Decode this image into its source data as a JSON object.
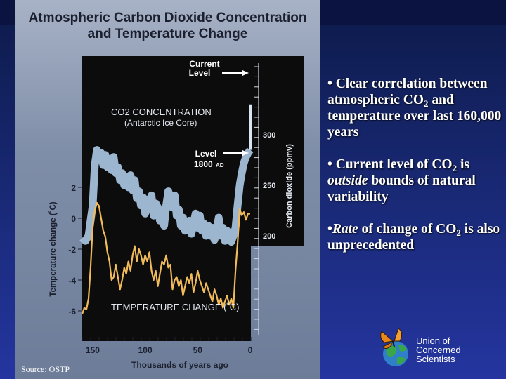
{
  "slide": {
    "source": "Source: OSTP",
    "bullets": [
      {
        "marker": "•",
        "parts": [
          "Clear correlation between atmospheric CO",
          "2",
          " and temperature over last 160,000 years"
        ]
      },
      {
        "marker": "•",
        "parts": [
          "Current level of CO",
          "2",
          " is ",
          "outside",
          " bounds of natural variability"
        ]
      },
      {
        "marker": "•",
        "parts": [
          "Rate",
          " of change of CO",
          "2",
          " is also unprecedented"
        ]
      }
    ],
    "logo": {
      "line1": "Union of",
      "line2": "Concerned",
      "line3": "Scientists",
      "icon": "butterfly-globe-icon"
    },
    "colors": {
      "co2": "#a9c6e2",
      "temperature": "#f2bb5a",
      "plot_background": "#0c0c0c",
      "slide_background": "#1a2a78"
    }
  },
  "chart_data": {
    "type": "line",
    "title": "Atmospheric Carbon Dioxide Concentration and Temperature Change",
    "xlabel": "Thousands of years ago",
    "x_ticks": [
      150,
      100,
      50,
      0
    ],
    "xlim": [
      160,
      0
    ],
    "y_left": {
      "label": "Temperature change (˚C)",
      "ticks": [
        "2",
        "0",
        "-2",
        "-4",
        "-6"
      ],
      "lim": [
        -6.8,
        2.8
      ]
    },
    "y_right": {
      "label": "Carbon dioxide (ppmv)",
      "ticks": [
        "300",
        "250",
        "200"
      ],
      "lim": [
        180,
        310
      ]
    },
    "series": [
      {
        "name": "CO2 CONCENTRATION",
        "subtitle": "(Antarctic Ice Core)",
        "axis": "right",
        "points": [
          [
            160,
            198
          ],
          [
            157,
            195
          ],
          [
            154,
            200
          ],
          [
            152,
            215
          ],
          [
            150,
            230
          ],
          [
            148,
            270
          ],
          [
            146,
            285
          ],
          [
            144,
            275
          ],
          [
            142,
            282
          ],
          [
            140,
            270
          ],
          [
            138,
            280
          ],
          [
            136,
            268
          ],
          [
            134,
            276
          ],
          [
            132,
            265
          ],
          [
            130,
            278
          ],
          [
            128,
            262
          ],
          [
            126,
            268
          ],
          [
            124,
            255
          ],
          [
            122,
            262
          ],
          [
            120,
            250
          ],
          [
            118,
            258
          ],
          [
            116,
            248
          ],
          [
            114,
            260
          ],
          [
            112,
            245
          ],
          [
            110,
            255
          ],
          [
            108,
            237
          ],
          [
            106,
            244
          ],
          [
            104,
            230
          ],
          [
            102,
            238
          ],
          [
            100,
            222
          ],
          [
            98,
            236
          ],
          [
            96,
            226
          ],
          [
            94,
            240
          ],
          [
            92,
            220
          ],
          [
            90,
            232
          ],
          [
            88,
            228
          ],
          [
            86,
            215
          ],
          [
            84,
            225
          ],
          [
            82,
            210
          ],
          [
            80,
            230
          ],
          [
            78,
            244
          ],
          [
            76,
            238
          ],
          [
            74,
            228
          ],
          [
            72,
            240
          ],
          [
            70,
            220
          ],
          [
            68,
            226
          ],
          [
            66,
            210
          ],
          [
            64,
            218
          ],
          [
            62,
            205
          ],
          [
            60,
            212
          ],
          [
            58,
            215
          ],
          [
            56,
            202
          ],
          [
            54,
            212
          ],
          [
            52,
            222
          ],
          [
            50,
            208
          ],
          [
            48,
            220
          ],
          [
            46,
            205
          ],
          [
            44,
            212
          ],
          [
            42,
            200
          ],
          [
            40,
            210
          ],
          [
            38,
            200
          ],
          [
            36,
            208
          ],
          [
            34,
            196
          ],
          [
            32,
            205
          ],
          [
            30,
            218
          ],
          [
            28,
            200
          ],
          [
            26,
            208
          ],
          [
            24,
            195
          ],
          [
            22,
            205
          ],
          [
            20,
            198
          ],
          [
            18,
            194
          ],
          [
            16,
            200
          ],
          [
            14,
            208
          ],
          [
            12,
            230
          ],
          [
            10,
            250
          ],
          [
            8,
            262
          ],
          [
            6,
            272
          ],
          [
            4,
            278
          ],
          [
            2,
            282
          ],
          [
            0,
            285
          ]
        ]
      },
      {
        "name": "TEMPERATURE CHANGE (˚C)",
        "axis": "left",
        "points": [
          [
            160,
            -6.2
          ],
          [
            158,
            -5.8
          ],
          [
            156,
            -5.9
          ],
          [
            154,
            -5.2
          ],
          [
            152,
            -3.2
          ],
          [
            150,
            -0.5
          ],
          [
            148,
            0.5
          ],
          [
            146,
            1.0
          ],
          [
            144,
            0.8
          ],
          [
            142,
            0.0
          ],
          [
            140,
            -0.8
          ],
          [
            138,
            -1.2
          ],
          [
            136,
            -2.2
          ],
          [
            134,
            -2.8
          ],
          [
            132,
            -4.0
          ],
          [
            130,
            -3.8
          ],
          [
            128,
            -3.0
          ],
          [
            126,
            -3.8
          ],
          [
            124,
            -4.6
          ],
          [
            122,
            -4.0
          ],
          [
            120,
            -3.2
          ],
          [
            118,
            -3.6
          ],
          [
            116,
            -2.8
          ],
          [
            114,
            -3.4
          ],
          [
            112,
            -2.4
          ],
          [
            110,
            -1.8
          ],
          [
            108,
            -2.8
          ],
          [
            106,
            -2.0
          ],
          [
            104,
            -2.4
          ],
          [
            102,
            -3.0
          ],
          [
            100,
            -2.4
          ],
          [
            98,
            -2.8
          ],
          [
            96,
            -2.2
          ],
          [
            94,
            -3.4
          ],
          [
            92,
            -4.0
          ],
          [
            90,
            -3.4
          ],
          [
            88,
            -4.4
          ],
          [
            86,
            -3.6
          ],
          [
            84,
            -2.8
          ],
          [
            82,
            -3.0
          ],
          [
            80,
            -2.4
          ],
          [
            78,
            -3.2
          ],
          [
            76,
            -3.0
          ],
          [
            74,
            -4.6
          ],
          [
            72,
            -4.0
          ],
          [
            70,
            -3.8
          ],
          [
            68,
            -4.4
          ],
          [
            66,
            -4.0
          ],
          [
            64,
            -5.0
          ],
          [
            62,
            -4.4
          ],
          [
            60,
            -3.8
          ],
          [
            58,
            -4.2
          ],
          [
            56,
            -3.6
          ],
          [
            54,
            -4.8
          ],
          [
            52,
            -4.2
          ],
          [
            50,
            -3.4
          ],
          [
            48,
            -4.0
          ],
          [
            46,
            -4.4
          ],
          [
            44,
            -4.8
          ],
          [
            42,
            -4.2
          ],
          [
            40,
            -4.6
          ],
          [
            38,
            -5.0
          ],
          [
            36,
            -5.4
          ],
          [
            34,
            -4.6
          ],
          [
            32,
            -5.0
          ],
          [
            30,
            -5.6
          ],
          [
            28,
            -5.2
          ],
          [
            26,
            -5.8
          ],
          [
            24,
            -5.4
          ],
          [
            22,
            -5.0
          ],
          [
            20,
            -5.6
          ],
          [
            18,
            -5.2
          ],
          [
            16,
            -5.8
          ],
          [
            14,
            -3.4
          ],
          [
            12,
            -1.6
          ],
          [
            10,
            0.6
          ],
          [
            8,
            0.2
          ],
          [
            6,
            0.4
          ],
          [
            4,
            -0.1
          ],
          [
            2,
            0.3
          ],
          [
            0,
            0.3
          ]
        ]
      }
    ],
    "annotations": [
      {
        "text_line1": "Current",
        "text_line2": "Level",
        "co2": 330
      },
      {
        "text_line1": "Level",
        "text_line2": "1800",
        "suffix": "AD",
        "co2": 280
      }
    ],
    "grid": false,
    "legend": "none"
  }
}
